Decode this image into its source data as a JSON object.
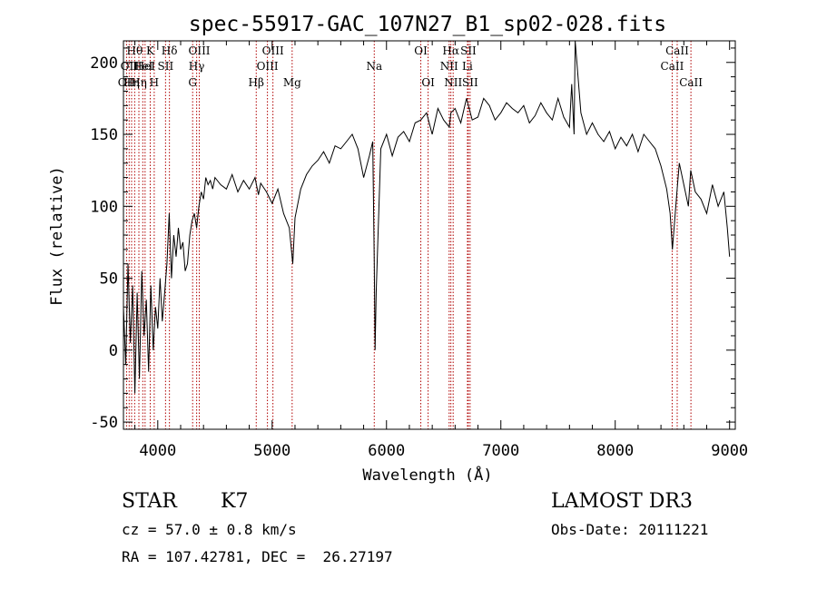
{
  "chart_data": {
    "type": "line",
    "title": "spec-55917-GAC_107N27_B1_sp02-028.fits",
    "xlabel": "Wavelength (Å)",
    "ylabel": "Flux (relative)",
    "xlim": [
      3700,
      9050
    ],
    "ylim": [
      -55,
      215
    ],
    "xticks": [
      4000,
      5000,
      6000,
      7000,
      8000,
      9000
    ],
    "yticks": [
      -50,
      0,
      50,
      100,
      150,
      200
    ],
    "series": [
      {
        "x": [
          3700,
          3720,
          3740,
          3760,
          3780,
          3800,
          3820,
          3840,
          3860,
          3880,
          3900,
          3920,
          3940,
          3960,
          3980,
          4000,
          4020,
          4040,
          4060,
          4080,
          4100,
          4120,
          4140,
          4160,
          4180,
          4200,
          4220,
          4240,
          4260,
          4280,
          4300,
          4320,
          4340,
          4360,
          4380,
          4400,
          4420,
          4440,
          4460,
          4480,
          4500,
          4550,
          4600,
          4650,
          4700,
          4750,
          4800,
          4850,
          4880,
          4900,
          4950,
          5000,
          5050,
          5100,
          5150,
          5180,
          5200,
          5250,
          5300,
          5350,
          5400,
          5450,
          5500,
          5550,
          5600,
          5650,
          5700,
          5750,
          5800,
          5850,
          5880,
          5893,
          5900,
          5910,
          5950,
          6000,
          6050,
          6100,
          6150,
          6200,
          6250,
          6300,
          6350,
          6400,
          6450,
          6500,
          6550,
          6563,
          6600,
          6650,
          6700,
          6750,
          6800,
          6850,
          6900,
          6950,
          7000,
          7050,
          7100,
          7150,
          7200,
          7250,
          7300,
          7350,
          7400,
          7450,
          7500,
          7550,
          7600,
          7620,
          7640,
          7650,
          7700,
          7750,
          7800,
          7850,
          7900,
          7950,
          8000,
          8050,
          8100,
          8150,
          8200,
          8250,
          8300,
          8350,
          8400,
          8450,
          8480,
          8500,
          8520,
          8540,
          8560,
          8600,
          8640,
          8660,
          8700,
          8750,
          8800,
          8850,
          8900,
          8950,
          8980,
          9000
        ],
        "y": [
          30,
          -10,
          60,
          5,
          45,
          -30,
          40,
          -20,
          55,
          10,
          35,
          -15,
          45,
          0,
          30,
          15,
          50,
          20,
          40,
          60,
          95,
          50,
          80,
          65,
          85,
          70,
          75,
          55,
          60,
          80,
          90,
          95,
          85,
          100,
          110,
          105,
          120,
          115,
          118,
          112,
          120,
          115,
          112,
          122,
          110,
          118,
          112,
          120,
          108,
          116,
          110,
          102,
          112,
          95,
          85,
          60,
          92,
          112,
          122,
          128,
          132,
          138,
          130,
          142,
          140,
          145,
          150,
          140,
          120,
          135,
          145,
          60,
          0,
          40,
          140,
          150,
          135,
          148,
          152,
          145,
          158,
          160,
          165,
          150,
          168,
          160,
          155,
          165,
          168,
          158,
          175,
          160,
          162,
          175,
          170,
          160,
          165,
          172,
          168,
          165,
          170,
          158,
          163,
          172,
          165,
          160,
          175,
          162,
          155,
          185,
          150,
          215,
          165,
          150,
          158,
          150,
          145,
          152,
          140,
          148,
          142,
          150,
          138,
          150,
          145,
          140,
          128,
          112,
          95,
          70,
          90,
          110,
          130,
          115,
          100,
          125,
          110,
          105,
          95,
          115,
          100,
          110,
          85,
          65
        ]
      }
    ],
    "spectral_lines": [
      {
        "wavelength": 3727,
        "label": "OII",
        "row": 2
      },
      {
        "wavelength": 3750,
        "label": "OII",
        "row": 1
      },
      {
        "wavelength": 3771,
        "label": "Hη",
        "row": 2
      },
      {
        "wavelength": 3798,
        "label": "Hθ",
        "row": 0
      },
      {
        "wavelength": 3835,
        "label": "Hη",
        "row": 2
      },
      {
        "wavelength": 3869,
        "label": "HeI",
        "row": 1
      },
      {
        "wavelength": 3889,
        "label": "HeI",
        "row": 1
      },
      {
        "wavelength": 3934,
        "label": "K",
        "row": 0
      },
      {
        "wavelength": 3969,
        "label": "H",
        "row": 2
      },
      {
        "wavelength": 4068,
        "label": "SII",
        "row": 1
      },
      {
        "wavelength": 4102,
        "label": "Hδ",
        "row": 0
      },
      {
        "wavelength": 4305,
        "label": "G",
        "row": 2
      },
      {
        "wavelength": 4340,
        "label": "Hγ",
        "row": 1
      },
      {
        "wavelength": 4363,
        "label": "OIII",
        "row": 0
      },
      {
        "wavelength": 4861,
        "label": "Hβ",
        "row": 2
      },
      {
        "wavelength": 4959,
        "label": "OIII",
        "row": 1
      },
      {
        "wavelength": 5007,
        "label": "OIII",
        "row": 0
      },
      {
        "wavelength": 5175,
        "label": "Mg",
        "row": 2
      },
      {
        "wavelength": 5893,
        "label": "Na",
        "row": 1
      },
      {
        "wavelength": 6300,
        "label": "OI",
        "row": 0
      },
      {
        "wavelength": 6364,
        "label": "OI",
        "row": 2
      },
      {
        "wavelength": 6548,
        "label": "NII",
        "row": 1
      },
      {
        "wavelength": 6563,
        "label": "Hα",
        "row": 0
      },
      {
        "wavelength": 6583,
        "label": "NII",
        "row": 2
      },
      {
        "wavelength": 6708,
        "label": "Li",
        "row": 1
      },
      {
        "wavelength": 6716,
        "label": "SII",
        "row": 0
      },
      {
        "wavelength": 6731,
        "label": "SII",
        "row": 2
      },
      {
        "wavelength": 8498,
        "label": "CaII",
        "row": 1
      },
      {
        "wavelength": 8542,
        "label": "CaII",
        "row": 0
      },
      {
        "wavelength": 8662,
        "label": "CaII",
        "row": 2
      }
    ],
    "line_color": "#000000",
    "marker_color": "#b00000"
  },
  "info": {
    "object_type": "STAR",
    "subclass": "K7",
    "survey": "LAMOST DR3",
    "cz": "cz = 57.0 ± 0.8 km/s",
    "obs_date": "Obs-Date: 20111221",
    "coords": "RA = 107.42781, DEC =  26.27197"
  }
}
